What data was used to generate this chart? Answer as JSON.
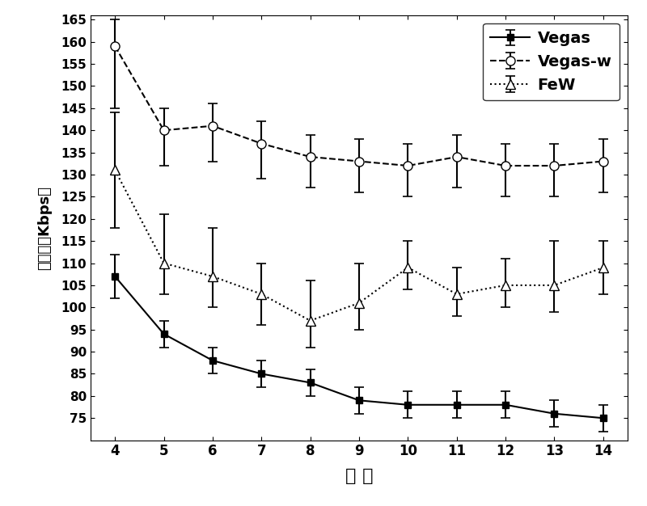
{
  "x": [
    4,
    5,
    6,
    7,
    8,
    9,
    10,
    11,
    12,
    13,
    14
  ],
  "vegas_y": [
    107,
    94,
    88,
    85,
    83,
    79,
    78,
    78,
    78,
    76,
    75
  ],
  "vegas_yerr_lo": [
    5,
    3,
    3,
    3,
    3,
    3,
    3,
    3,
    3,
    3,
    3
  ],
  "vegas_yerr_hi": [
    5,
    3,
    3,
    3,
    3,
    3,
    3,
    3,
    3,
    3,
    3
  ],
  "vegasw_y": [
    159,
    140,
    141,
    137,
    134,
    133,
    132,
    134,
    132,
    132,
    133
  ],
  "vegasw_yerr_lo": [
    14,
    8,
    8,
    8,
    7,
    7,
    7,
    7,
    7,
    7,
    7
  ],
  "vegasw_yerr_hi": [
    6,
    5,
    5,
    5,
    5,
    5,
    5,
    5,
    5,
    5,
    5
  ],
  "few_y": [
    131,
    110,
    107,
    103,
    97,
    101,
    109,
    103,
    105,
    105,
    109
  ],
  "few_yerr_lo": [
    13,
    7,
    7,
    7,
    6,
    6,
    5,
    5,
    5,
    6,
    6
  ],
  "few_yerr_hi": [
    13,
    11,
    11,
    7,
    9,
    9,
    6,
    6,
    6,
    10,
    6
  ],
  "xlim": [
    3.5,
    14.5
  ],
  "ylim": [
    70,
    166
  ],
  "yticks": [
    75,
    80,
    85,
    90,
    95,
    100,
    105,
    110,
    115,
    120,
    125,
    130,
    135,
    140,
    145,
    150,
    155,
    160,
    165
  ],
  "xlabel": "跳 数",
  "ylabel": "容吐量（Kbps）",
  "legend_labels": [
    "Vegas",
    "Vegas-w",
    "FeW"
  ],
  "background_color": "#ffffff"
}
